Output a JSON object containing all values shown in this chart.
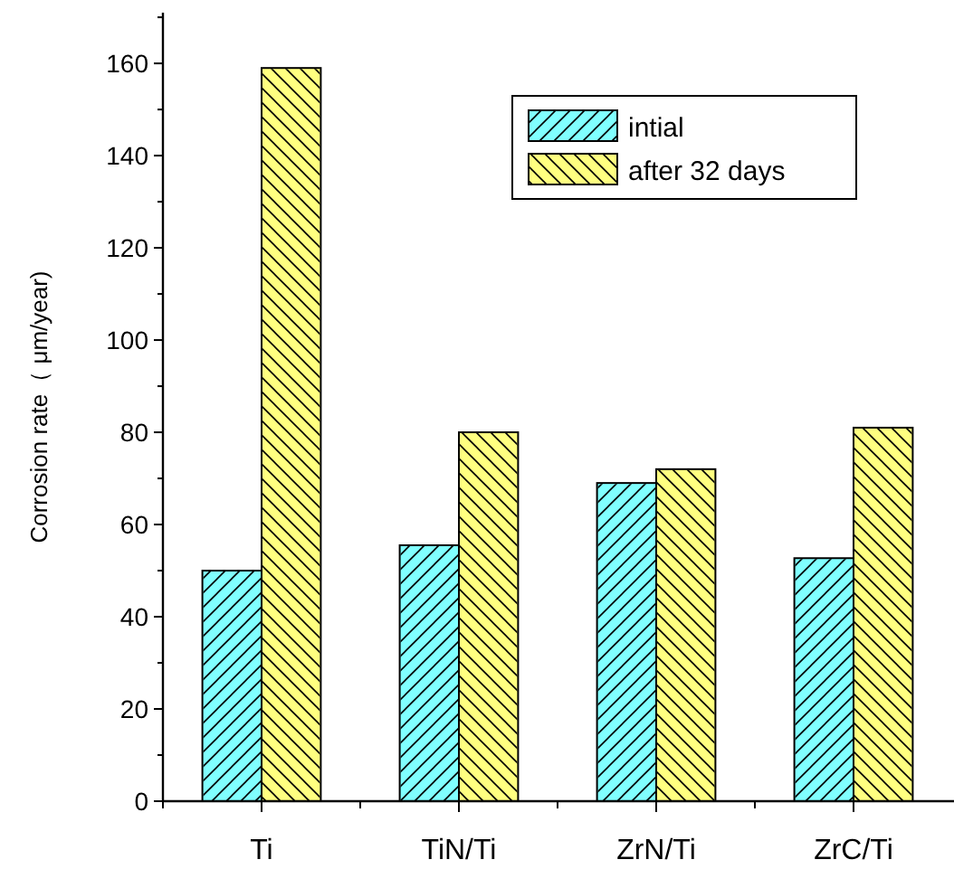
{
  "chart_data": {
    "type": "bar",
    "ylabel": "Corrosion rate（ μm/year)",
    "categories": [
      "Ti",
      "TiN/Ti",
      "ZrN/Ti",
      "ZrC/Ti"
    ],
    "series": [
      {
        "name": "intial",
        "color": "#80ffff",
        "values": [
          50,
          55.5,
          69,
          52.7
        ]
      },
      {
        "name": "after 32 days",
        "color": "#ffff80",
        "values": [
          159,
          80,
          72,
          81
        ]
      }
    ],
    "ylim": [
      0,
      171
    ],
    "yticks": [
      0,
      {
        "value": 10,
        "label": null
      },
      20,
      {
        "value": 30,
        "label": null
      },
      40,
      {
        "value": 50,
        "label": null
      },
      60,
      {
        "value": 70,
        "label": null
      },
      80,
      {
        "value": 90,
        "label": null
      },
      100,
      {
        "value": 110,
        "label": null
      },
      120,
      {
        "value": 130,
        "label": null
      },
      140,
      {
        "value": 150,
        "label": null
      },
      160,
      {
        "value": 170,
        "label": null
      }
    ],
    "legend": "top right"
  }
}
